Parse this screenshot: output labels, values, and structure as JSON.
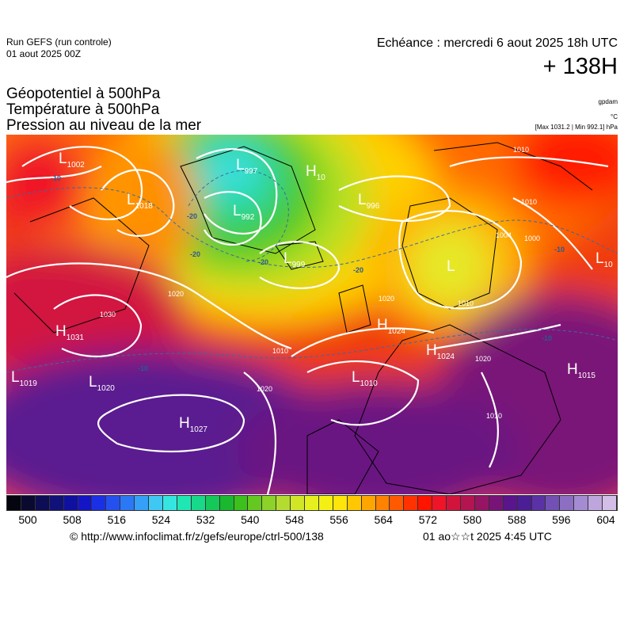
{
  "header": {
    "run_name": "Run GEFS (run controle)",
    "run_date": "01 aout 2025 00Z",
    "echeance": "Echéance : mercredi 6 aout 2025 18h UTC",
    "lead_time": "+ 138H"
  },
  "params": [
    "Géopotentiel à 500hPa",
    "Température à 500hPa",
    "Pression au niveau de la mer"
  ],
  "units": {
    "geopotential": "gpdam",
    "temperature": "°C",
    "pressure_range": "[Max 1031.2 | Min 992.1] hPa"
  },
  "pressure_centers": [
    {
      "type": "L",
      "value": "1002"
    },
    {
      "type": "L",
      "value": "997"
    },
    {
      "type": "L",
      "value": "992"
    },
    {
      "type": "L",
      "value": "999"
    },
    {
      "type": "H",
      "value": "10"
    },
    {
      "type": "L",
      "value": "1018"
    },
    {
      "type": "L",
      "value": "996"
    },
    {
      "type": "L",
      "value": ""
    },
    {
      "type": "L",
      "value": "10"
    },
    {
      "type": "H",
      "value": "1031"
    },
    {
      "type": "H",
      "value": "1024"
    },
    {
      "type": "H",
      "value": "1024"
    },
    {
      "type": "L",
      "value": "1019"
    },
    {
      "type": "L",
      "value": "1020"
    },
    {
      "type": "L",
      "value": "1010"
    },
    {
      "type": "H",
      "value": "1015"
    },
    {
      "type": "H",
      "value": "1027"
    }
  ],
  "isobar_labels": [
    "1020",
    "1030",
    "1010",
    "1020",
    "1010",
    "1020",
    "1010",
    "1010",
    "1000",
    "1004",
    "1020",
    "1010"
  ],
  "isotherm_labels": [
    "-10",
    "-20",
    "-20",
    "-20",
    "-20",
    "-10",
    "-10",
    "-10"
  ],
  "colorbar": {
    "colors": [
      "#05050f",
      "#0a0a30",
      "#0d0d55",
      "#11117a",
      "#1010a0",
      "#1515c8",
      "#1a30e6",
      "#2550f0",
      "#2a78f5",
      "#35a0f8",
      "#40c8f5",
      "#35e6e0",
      "#20e6b4",
      "#18d88a",
      "#15c85a",
      "#1ab82e",
      "#3cc01c",
      "#64c820",
      "#8cd228",
      "#b4dc30",
      "#d2e628",
      "#e6f01e",
      "#f5f014",
      "#ffe60a",
      "#ffc800",
      "#ffa500",
      "#ff8200",
      "#ff5a00",
      "#ff3200",
      "#ff1400",
      "#f01428",
      "#d2143c",
      "#b41450",
      "#961464",
      "#781478",
      "#5a148c",
      "#4b1e96",
      "#5a32a5",
      "#7350b4",
      "#8c6ec3",
      "#a58cd2",
      "#bea5dc",
      "#d2bee6"
    ],
    "ticks": [
      "500",
      "508",
      "516",
      "524",
      "532",
      "540",
      "548",
      "556",
      "564",
      "572",
      "580",
      "588",
      "596",
      "604"
    ]
  },
  "footer": {
    "credit": "© http://www.infoclimat.fr/z/gefs/europe/ctrl-500/138",
    "timestamp": "01 ao☆☆t 2025  4:45 UTC"
  }
}
